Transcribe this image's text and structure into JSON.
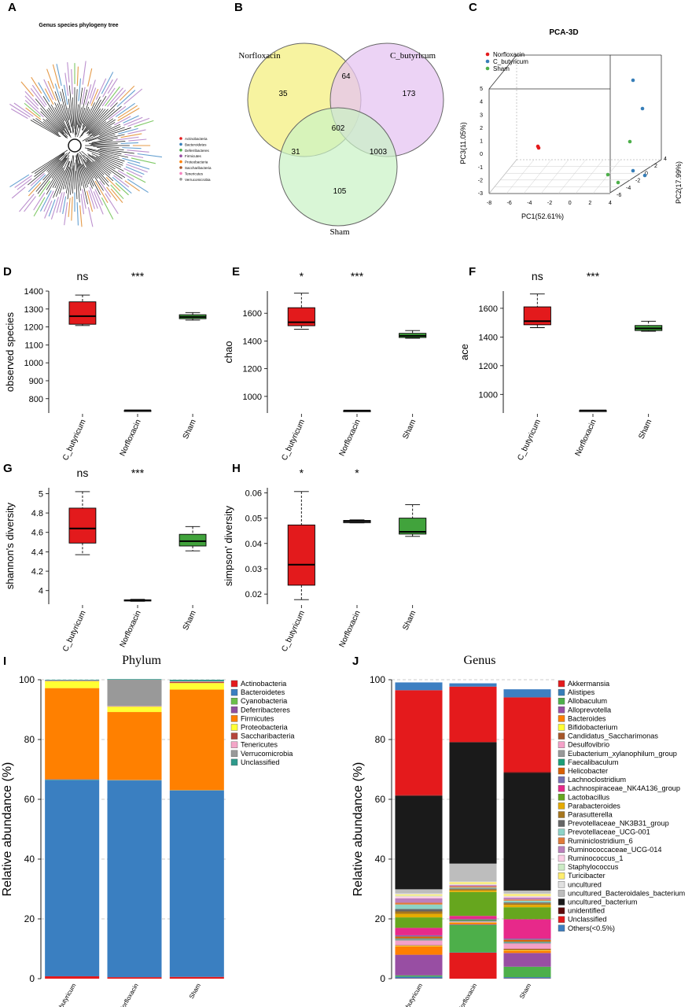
{
  "panel_letters": [
    "A",
    "B",
    "C",
    "D",
    "E",
    "F",
    "G",
    "H",
    "I",
    "J"
  ],
  "colors": {
    "red": "#e41a1c",
    "blue": "#377eb8",
    "green": "#4daf4a",
    "box_red": "#e31a1c",
    "box_green": "#41a33c"
  },
  "chart_data": [
    {
      "panel": "A",
      "type": "other",
      "title": "Genus species phylogeny tree",
      "legend": [
        {
          "label": "Actinobacteria",
          "color": "#e41a1c"
        },
        {
          "label": "Bacteroidetes",
          "color": "#377eb8"
        },
        {
          "label": "Deferribacteres",
          "color": "#4daf4a"
        },
        {
          "label": "Firmicutes",
          "color": "#984ea3"
        },
        {
          "label": "Proteobacteria",
          "color": "#ff7f00"
        },
        {
          "label": "Saccharibacteria",
          "color": "#a65628"
        },
        {
          "label": "Tenericutes",
          "color": "#f781bf"
        },
        {
          "label": "Verrucomicrobia",
          "color": "#999999"
        }
      ]
    },
    {
      "panel": "B",
      "type": "venn",
      "sets": [
        {
          "label": "Norfloxacin",
          "color": "#f7f3a0"
        },
        {
          "label": "C_butyricum",
          "color": "#e6c4f2"
        },
        {
          "label": "Sham",
          "color": "#c9f2c4"
        }
      ],
      "regions": {
        "norfloxacin_only": "35",
        "c_butyricum_only": "173",
        "sham_only": "105",
        "norfloxacin_c_butyricum": "64",
        "norfloxacin_sham": "31",
        "c_butyricum_sham": "1003",
        "all": "602"
      }
    },
    {
      "panel": "C",
      "type": "scatter",
      "title": "PCA-3D",
      "xlabel": "PC1(52.61%)",
      "ylabel": "PC3(11.05%)",
      "zlabel": "PC2(17.99%)",
      "xticks": [
        "-8",
        "-6",
        "-4",
        "-2",
        "0",
        "2",
        "4"
      ],
      "yticks": [
        "-3",
        "-2",
        "-1",
        "0",
        "1",
        "2",
        "3",
        "4",
        "5"
      ],
      "zticks": [
        "-6",
        "-4",
        "-2",
        "0",
        "2",
        "4"
      ],
      "legend": [
        {
          "label": "Norfloxacin",
          "color": "#e41a1c"
        },
        {
          "label": "C_butyricum",
          "color": "#377eb8"
        },
        {
          "label": "Sham",
          "color": "#4daf4a"
        }
      ]
    },
    {
      "panel": "D",
      "type": "box",
      "ylabel": "observed species",
      "ylim": [
        720,
        1400
      ],
      "yticks": [
        800,
        900,
        1000,
        1100,
        1200,
        1300,
        1400
      ],
      "categories": [
        "C_butyricum",
        "Norfloxacin",
        "Sham"
      ],
      "sig": [
        "ns",
        "***"
      ],
      "boxes": [
        {
          "min": 1208,
          "q1": 1215,
          "median": 1260,
          "q3": 1340,
          "max": 1378
        },
        {
          "min": 735,
          "q1": 735,
          "median": 735,
          "q3": 735,
          "max": 735
        },
        {
          "min": 1238,
          "q1": 1246,
          "median": 1256,
          "q3": 1268,
          "max": 1280
        }
      ]
    },
    {
      "panel": "E",
      "type": "box",
      "ylabel": "chao",
      "ylim": [
        880,
        1760
      ],
      "yticks": [
        1000,
        1200,
        1400,
        1600
      ],
      "categories": [
        "C_butyricum",
        "Norfloxacin",
        "Sham"
      ],
      "sig": [
        "*",
        "***"
      ],
      "boxes": [
        {
          "min": 1485,
          "q1": 1510,
          "median": 1535,
          "q3": 1640,
          "max": 1745
        },
        {
          "min": 898,
          "q1": 898,
          "median": 898,
          "q3": 898,
          "max": 898
        },
        {
          "min": 1420,
          "q1": 1425,
          "median": 1437,
          "q3": 1455,
          "max": 1475
        }
      ]
    },
    {
      "panel": "F",
      "type": "box",
      "ylabel": "ace",
      "ylim": [
        870,
        1720
      ],
      "yticks": [
        1000,
        1200,
        1400,
        1600
      ],
      "categories": [
        "C_butyricum",
        "Norfloxacin",
        "Sham"
      ],
      "sig": [
        "ns",
        "***"
      ],
      "boxes": [
        {
          "min": 1465,
          "q1": 1485,
          "median": 1510,
          "q3": 1610,
          "max": 1700
        },
        {
          "min": 888,
          "q1": 888,
          "median": 888,
          "q3": 888,
          "max": 888
        },
        {
          "min": 1440,
          "q1": 1445,
          "median": 1460,
          "q3": 1480,
          "max": 1510
        }
      ]
    },
    {
      "panel": "G",
      "type": "box",
      "ylabel": "shannon's diversity",
      "ylim": [
        3.86,
        5.06
      ],
      "yticks": [
        4.0,
        4.2,
        4.4,
        4.6,
        4.8,
        5.0
      ],
      "categories": [
        "C_butyricum",
        "Norfloxacin",
        "Sham"
      ],
      "sig": [
        "ns",
        "***"
      ],
      "boxes": [
        {
          "min": 4.37,
          "q1": 4.49,
          "median": 4.64,
          "q3": 4.85,
          "max": 5.02
        },
        {
          "min": 3.89,
          "q1": 3.895,
          "median": 3.9,
          "q3": 3.905,
          "max": 3.91
        },
        {
          "min": 4.41,
          "q1": 4.46,
          "median": 4.51,
          "q3": 4.58,
          "max": 4.66
        }
      ]
    },
    {
      "panel": "H",
      "type": "box",
      "ylabel": "simpson' diversity",
      "ylim": [
        0.016,
        0.062
      ],
      "yticks": [
        0.02,
        0.03,
        0.04,
        0.05,
        0.06
      ],
      "categories": [
        "C_butyricum",
        "Norfloxacin",
        "Sham"
      ],
      "sig": [
        "*",
        "*"
      ],
      "boxes": [
        {
          "min": 0.0178,
          "q1": 0.0235,
          "median": 0.0316,
          "q3": 0.0473,
          "max": 0.0605
        },
        {
          "min": 0.0481,
          "q1": 0.0482,
          "median": 0.0487,
          "q3": 0.0491,
          "max": 0.0493
        },
        {
          "min": 0.0428,
          "q1": 0.0437,
          "median": 0.0446,
          "q3": 0.05,
          "max": 0.0553
        }
      ]
    },
    {
      "panel": "I",
      "type": "bar",
      "stacked": true,
      "title": "Phylum",
      "ylabel": "Relative abundance (%)",
      "ylim": [
        0,
        100
      ],
      "yticks": [
        0,
        20,
        40,
        60,
        80,
        100
      ],
      "categories": [
        "C_butyricum",
        "Norfloxacin",
        "Sham"
      ],
      "series": [
        {
          "name": "Actinobacteria",
          "color": "#e41a1c",
          "values": [
            0.8,
            0.5,
            0.6
          ]
        },
        {
          "name": "Bacteroidetes",
          "color": "#3a7fc1",
          "values": [
            65.7,
            65.8,
            62.3
          ]
        },
        {
          "name": "Cyanobacteria",
          "color": "#6abf4b",
          "values": [
            0.1,
            0.1,
            0.1
          ]
        },
        {
          "name": "Deferribacteres",
          "color": "#8e4fa0",
          "values": [
            0.1,
            0.1,
            0.1
          ]
        },
        {
          "name": "Firmicutes",
          "color": "#ff8000",
          "values": [
            30.5,
            22.7,
            33.6
          ]
        },
        {
          "name": "Proteobacteria",
          "color": "#ffff33",
          "values": [
            2.3,
            1.8,
            2.2
          ]
        },
        {
          "name": "Saccharibacteria",
          "color": "#b5453c",
          "values": [
            0.1,
            0.1,
            0.4
          ]
        },
        {
          "name": "Tenericutes",
          "color": "#f4a6c8",
          "values": [
            0.1,
            0.1,
            0.1
          ]
        },
        {
          "name": "Verrucomicrobia",
          "color": "#999999",
          "values": [
            0.1,
            8.8,
            0.1
          ]
        },
        {
          "name": "Unclassified",
          "color": "#2e9a8c",
          "values": [
            0.2,
            0.2,
            0.5
          ]
        }
      ]
    },
    {
      "panel": "J",
      "type": "bar",
      "stacked": true,
      "title": "Genus",
      "ylabel": "Relative abundance (%)",
      "ylim": [
        0,
        100
      ],
      "yticks": [
        0,
        20,
        40,
        60,
        80,
        100
      ],
      "categories": [
        "C_butyricum",
        "Norfloxacin",
        "Sham"
      ],
      "series": [
        {
          "name": "Akkermansia",
          "color": "#e41a1c",
          "values": [
            0.1,
            8.7,
            0.1
          ]
        },
        {
          "name": "Alistipes",
          "color": "#377eb8",
          "values": [
            0.6,
            0.1,
            0.4
          ]
        },
        {
          "name": "Allobaculum",
          "color": "#4daf4a",
          "values": [
            0.4,
            9.2,
            3.5
          ]
        },
        {
          "name": "Alloprevotella",
          "color": "#984ea3",
          "values": [
            6.9,
            0.2,
            4.6
          ]
        },
        {
          "name": "Bacteroides",
          "color": "#ff7f00",
          "values": [
            2.8,
            0.5,
            0.8
          ]
        },
        {
          "name": "Bifidobacterium",
          "color": "#ffff33",
          "values": [
            0.2,
            0.1,
            0.2
          ]
        },
        {
          "name": "Candidatus_Saccharimonas",
          "color": "#a65628",
          "values": [
            0.2,
            0.1,
            0.4
          ]
        },
        {
          "name": "Desulfovibrio",
          "color": "#f4a1c8",
          "values": [
            1.5,
            0.2,
            1.7
          ]
        },
        {
          "name": "Eubacterium_xylanophilum_group",
          "color": "#999999",
          "values": [
            0.6,
            0.2,
            0.5
          ]
        },
        {
          "name": "Faecalibaculum",
          "color": "#1b9e77",
          "values": [
            0.2,
            0.3,
            0.2
          ]
        },
        {
          "name": "Helicobacter",
          "color": "#d95f02",
          "values": [
            0.6,
            0.2,
            0.6
          ]
        },
        {
          "name": "Lachnoclostridium",
          "color": "#7570b3",
          "values": [
            0.4,
            0.2,
            0.4
          ]
        },
        {
          "name": "Lachnospiraceae_NK4A136_group",
          "color": "#e7298a",
          "values": [
            2.5,
            1.0,
            6.5
          ]
        },
        {
          "name": "Lactobacillus",
          "color": "#66a61e",
          "values": [
            3.5,
            8.0,
            4.0
          ]
        },
        {
          "name": "Parabacteroides",
          "color": "#e6ab02",
          "values": [
            1.2,
            0.5,
            0.8
          ]
        },
        {
          "name": "Parasutterella",
          "color": "#a6761d",
          "values": [
            0.8,
            0.4,
            0.5
          ]
        },
        {
          "name": "Prevotellaceae_NK3B31_group",
          "color": "#666666",
          "values": [
            0.8,
            0.3,
            0.3
          ]
        },
        {
          "name": "Prevotellaceae_UCG-001",
          "color": "#8dd3c7",
          "values": [
            1.5,
            0.3,
            0.6
          ]
        },
        {
          "name": "Ruminiclostridium_6",
          "color": "#e07b39",
          "values": [
            0.6,
            0.4,
            0.4
          ]
        },
        {
          "name": "Ruminococcaceae_UCG-014",
          "color": "#bc80bd",
          "values": [
            1.5,
            0.4,
            0.6
          ]
        },
        {
          "name": "Ruminococcus_1",
          "color": "#fccde5",
          "values": [
            0.6,
            0.2,
            0.4
          ]
        },
        {
          "name": "Staphylococcus",
          "color": "#ccebc5",
          "values": [
            0.3,
            0.2,
            0.2
          ]
        },
        {
          "name": "Turicibacter",
          "color": "#ffed6f",
          "values": [
            0.4,
            0.6,
            0.6
          ]
        },
        {
          "name": "uncultured",
          "color": "#e0e0e0",
          "values": [
            0.3,
            0.2,
            0.2
          ]
        },
        {
          "name": "uncultured_Bacteroidales_bacterium",
          "color": "#bdbdbd",
          "values": [
            1.4,
            6.0,
            1.0
          ]
        },
        {
          "name": "uncultured_bacterium",
          "color": "#1a1a1a",
          "values": [
            31.2,
            40.5,
            39.3
          ]
        },
        {
          "name": "unidentified",
          "color": "#5c0a0a",
          "values": [
            0.3,
            0.2,
            0.3
          ]
        },
        {
          "name": "Unclassified",
          "color": "#e41a1c",
          "values": [
            35.1,
            18.5,
            25.0
          ]
        },
        {
          "name": "Others(<0.5%)",
          "color": "#3d7fc2",
          "values": [
            2.6,
            1.1,
            2.7
          ]
        }
      ]
    }
  ]
}
